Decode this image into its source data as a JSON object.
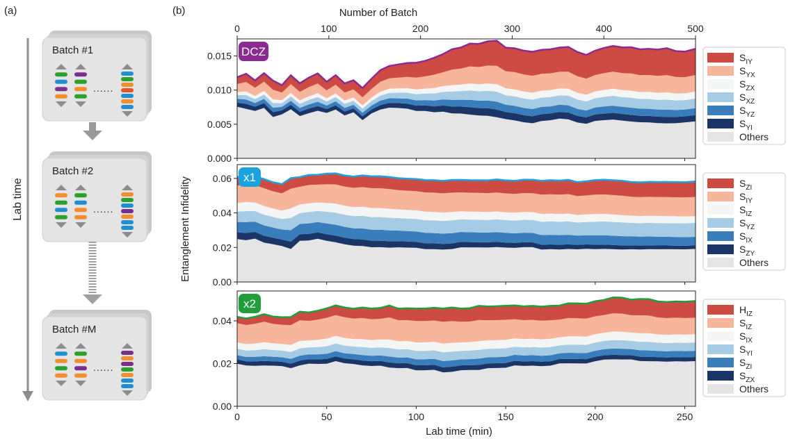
{
  "panel_labels": {
    "a": "(a)",
    "b": "(b)"
  },
  "schematic": {
    "timeline_label": "Lab time",
    "batches": [
      {
        "label": "Batch #1",
        "pulses": [
          [
            "#2ca02c",
            "#1f8fd4",
            "#7b2d8e",
            "#f28e2b"
          ],
          [
            "#7b2d8e",
            "#2ca02c",
            "#f28e2b",
            "#2ca02c"
          ],
          [
            "#1f8fd4",
            "#2ca02c",
            "#f28e2b",
            "#e8542a",
            "#1f8fd4",
            "#f28e2b",
            "#1f8fd4"
          ]
        ]
      },
      {
        "label": "Batch #2",
        "pulses": [
          [
            "#f28e2b",
            "#2ca02c",
            "#1f8fd4",
            "#2ca02c"
          ],
          [
            "#2ca02c",
            "#1f8fd4",
            "#f28e2b",
            "#f28e2b"
          ],
          [
            "#f28e2b",
            "#2ca02c",
            "#1f8fd4",
            "#7b2d8e",
            "#f28e2b",
            "#1f8fd4",
            "#1f8fd4"
          ]
        ]
      },
      {
        "label": "Batch #M",
        "pulses": [
          [
            "#1f8fd4",
            "#f28e2b",
            "#2ca02c",
            "#f28e2b"
          ],
          [
            "#2ca02c",
            "#f28e2b",
            "#7b2d8e",
            "#f28e2b"
          ],
          [
            "#7b2d8e",
            "#f28e2b",
            "#7b2d8e",
            "#2ca02c",
            "#f28e2b",
            "#1f8fd4",
            "#1f8fd4"
          ]
        ]
      }
    ],
    "dots_glyph": "......"
  },
  "chart_data": {
    "type": "area",
    "top_axis": {
      "label": "Number of Batch",
      "ticks": [
        0,
        100,
        200,
        300,
        400,
        500
      ],
      "range": [
        0,
        500
      ]
    },
    "xlabel": "Lab time (min)",
    "ylabel": "Entanglement Infidelity",
    "xlim": [
      0,
      256
    ],
    "x_ticks": [
      0,
      50,
      100,
      150,
      200,
      250
    ],
    "stack_colors": [
      "#e5e5e5",
      "#1a3566",
      "#3a7dbd",
      "#a5cce4",
      "#f4f6f6",
      "#f7b69b",
      "#cd4b42"
    ],
    "panels": [
      {
        "tag": "DCZ",
        "tag_color": "#8b2a91",
        "line_color": "#8b2a91",
        "ylim": [
          0,
          0.0175
        ],
        "y_ticks": [
          "0.000",
          "0.005",
          "0.010",
          "0.015"
        ],
        "x": [
          0,
          5,
          10,
          15,
          20,
          25,
          30,
          35,
          40,
          45,
          50,
          55,
          60,
          65,
          70,
          75,
          80,
          85,
          90,
          95,
          100,
          105,
          110,
          115,
          120,
          125,
          130,
          135,
          140,
          145,
          150,
          155,
          160,
          165,
          170,
          175,
          180,
          185,
          190,
          195,
          200,
          205,
          210,
          215,
          220,
          225,
          230,
          235,
          240,
          245,
          250,
          256
        ],
        "total": [
          0.0118,
          0.0123,
          0.0115,
          0.0125,
          0.0113,
          0.0108,
          0.0122,
          0.011,
          0.0118,
          0.0125,
          0.0113,
          0.0121,
          0.011,
          0.0115,
          0.0103,
          0.0117,
          0.013,
          0.0135,
          0.0138,
          0.014,
          0.0141,
          0.0142,
          0.0148,
          0.0152,
          0.016,
          0.0163,
          0.0168,
          0.0168,
          0.0171,
          0.0172,
          0.0163,
          0.0162,
          0.0158,
          0.0157,
          0.0158,
          0.016,
          0.0162,
          0.0163,
          0.0155,
          0.0152,
          0.0158,
          0.0162,
          0.0165,
          0.0162,
          0.0163,
          0.016,
          0.0161,
          0.016,
          0.0161,
          0.0158,
          0.0157,
          0.016
        ],
        "baseline": [
          0.0075,
          0.0072,
          0.007,
          0.0074,
          0.006,
          0.0065,
          0.0072,
          0.0062,
          0.0066,
          0.007,
          0.0067,
          0.0071,
          0.0063,
          0.0068,
          0.0056,
          0.0066,
          0.0072,
          0.0074,
          0.0074,
          0.0073,
          0.007,
          0.0069,
          0.0068,
          0.0068,
          0.0066,
          0.0066,
          0.0064,
          0.0063,
          0.0062,
          0.006,
          0.0058,
          0.0056,
          0.0053,
          0.0052,
          0.0054,
          0.0056,
          0.0058,
          0.0057,
          0.0052,
          0.0051,
          0.0055,
          0.0056,
          0.0057,
          0.0055,
          0.0054,
          0.0053,
          0.0053,
          0.0052,
          0.0051,
          0.0052,
          0.0053,
          0.0054
        ],
        "series": [
          {
            "name": "S",
            "sub": "IY",
            "color": "#cd4b42",
            "start": 0.0011,
            "end": 0.0038
          },
          {
            "name": "S",
            "sub": "YX",
            "color": "#f7b69b",
            "start": 0.0013,
            "end": 0.0024
          },
          {
            "name": "S",
            "sub": "ZX",
            "color": "#f4f6f6",
            "start": 0.0005,
            "end": 0.001
          },
          {
            "name": "S",
            "sub": "XZ",
            "color": "#a5cce4",
            "start": 0.0006,
            "end": 0.0014
          },
          {
            "name": "S",
            "sub": "YZ",
            "color": "#3a7dbd",
            "start": 0.0006,
            "end": 0.001
          },
          {
            "name": "S",
            "sub": "YI",
            "color": "#1a3566",
            "start": 0.0007,
            "end": 0.0009
          },
          {
            "name": "Others",
            "sub": "",
            "color": "#e5e5e5"
          }
        ]
      },
      {
        "tag": "x1",
        "tag_color": "#1ba3e0",
        "line_color": "#1ba3e0",
        "ylim": [
          0,
          0.068
        ],
        "y_ticks": [
          "0.00",
          "0.02",
          "0.04",
          "0.06"
        ],
        "x": [
          0,
          5,
          10,
          15,
          20,
          25,
          30,
          35,
          40,
          45,
          50,
          55,
          60,
          65,
          70,
          75,
          80,
          85,
          90,
          95,
          100,
          105,
          110,
          115,
          120,
          125,
          130,
          135,
          140,
          145,
          150,
          155,
          160,
          165,
          170,
          175,
          180,
          185,
          190,
          195,
          200,
          205,
          210,
          215,
          220,
          225,
          230,
          235,
          240,
          245,
          250,
          256
        ],
        "total": [
          0.061,
          0.062,
          0.061,
          0.06,
          0.058,
          0.057,
          0.06,
          0.061,
          0.062,
          0.062,
          0.063,
          0.063,
          0.062,
          0.061,
          0.062,
          0.061,
          0.061,
          0.061,
          0.06,
          0.06,
          0.06,
          0.059,
          0.059,
          0.059,
          0.059,
          0.059,
          0.059,
          0.059,
          0.059,
          0.059,
          0.059,
          0.059,
          0.059,
          0.059,
          0.059,
          0.059,
          0.059,
          0.059,
          0.058,
          0.058,
          0.059,
          0.059,
          0.059,
          0.059,
          0.058,
          0.058,
          0.058,
          0.058,
          0.058,
          0.058,
          0.058,
          0.058
        ],
        "baseline": [
          0.025,
          0.024,
          0.025,
          0.023,
          0.022,
          0.021,
          0.019,
          0.024,
          0.024,
          0.025,
          0.024,
          0.023,
          0.022,
          0.021,
          0.021,
          0.02,
          0.02,
          0.02,
          0.02,
          0.02,
          0.02,
          0.019,
          0.019,
          0.019,
          0.019,
          0.02,
          0.02,
          0.02,
          0.02,
          0.02,
          0.02,
          0.02,
          0.02,
          0.02,
          0.019,
          0.019,
          0.019,
          0.019,
          0.019,
          0.019,
          0.019,
          0.019,
          0.019,
          0.019,
          0.019,
          0.019,
          0.019,
          0.019,
          0.019,
          0.019,
          0.019,
          0.019
        ],
        "series": [
          {
            "name": "S",
            "sub": "ZI",
            "color": "#cd4b42",
            "start": 0.005,
            "end": 0.009
          },
          {
            "name": "S",
            "sub": "IY",
            "color": "#f7b69b",
            "start": 0.01,
            "end": 0.011
          },
          {
            "name": "S",
            "sub": "IZ",
            "color": "#f4f6f6",
            "start": 0.005,
            "end": 0.004
          },
          {
            "name": "S",
            "sub": "YZ",
            "color": "#a5cce4",
            "start": 0.006,
            "end": 0.008
          },
          {
            "name": "S",
            "sub": "IX",
            "color": "#3a7dbd",
            "start": 0.006,
            "end": 0.005
          },
          {
            "name": "S",
            "sub": "ZY",
            "color": "#1a3566",
            "start": 0.004,
            "end": 0.002
          },
          {
            "name": "Others",
            "sub": "",
            "color": "#e5e5e5"
          }
        ]
      },
      {
        "tag": "x2",
        "tag_color": "#1f9e3a",
        "line_color": "#1f9e3a",
        "ylim": [
          0,
          0.054
        ],
        "y_ticks": [
          "0.00",
          "0.02",
          "0.04"
        ],
        "x": [
          0,
          5,
          10,
          15,
          20,
          25,
          30,
          35,
          40,
          45,
          50,
          55,
          60,
          65,
          70,
          75,
          80,
          85,
          90,
          95,
          100,
          105,
          110,
          115,
          120,
          125,
          130,
          135,
          140,
          145,
          150,
          155,
          160,
          165,
          170,
          175,
          180,
          185,
          190,
          195,
          200,
          205,
          210,
          215,
          220,
          225,
          230,
          235,
          240,
          245,
          250,
          256
        ],
        "total": [
          0.042,
          0.041,
          0.042,
          0.043,
          0.042,
          0.042,
          0.042,
          0.044,
          0.044,
          0.045,
          0.046,
          0.047,
          0.046,
          0.046,
          0.046,
          0.046,
          0.046,
          0.047,
          0.046,
          0.046,
          0.046,
          0.046,
          0.046,
          0.046,
          0.046,
          0.046,
          0.046,
          0.047,
          0.047,
          0.047,
          0.047,
          0.047,
          0.047,
          0.047,
          0.047,
          0.047,
          0.047,
          0.048,
          0.048,
          0.048,
          0.049,
          0.05,
          0.051,
          0.051,
          0.05,
          0.05,
          0.05,
          0.049,
          0.049,
          0.049,
          0.049,
          0.049
        ],
        "baseline": [
          0.02,
          0.019,
          0.019,
          0.019,
          0.019,
          0.019,
          0.018,
          0.019,
          0.02,
          0.02,
          0.02,
          0.021,
          0.02,
          0.02,
          0.019,
          0.019,
          0.019,
          0.018,
          0.018,
          0.018,
          0.017,
          0.017,
          0.017,
          0.016,
          0.016,
          0.017,
          0.017,
          0.017,
          0.018,
          0.018,
          0.018,
          0.019,
          0.019,
          0.019,
          0.019,
          0.019,
          0.02,
          0.02,
          0.02,
          0.02,
          0.021,
          0.022,
          0.022,
          0.022,
          0.022,
          0.021,
          0.021,
          0.021,
          0.021,
          0.021,
          0.021,
          0.021
        ],
        "series": [
          {
            "name": "H",
            "sub": "IZ",
            "color": "#cd4b42",
            "start": 0.003,
            "end": 0.008
          },
          {
            "name": "S",
            "sub": "IZ",
            "color": "#f7b69b",
            "start": 0.009,
            "end": 0.008
          },
          {
            "name": "S",
            "sub": "IX",
            "color": "#f4f6f6",
            "start": 0.003,
            "end": 0.004
          },
          {
            "name": "S",
            "sub": "YI",
            "color": "#a5cce4",
            "start": 0.003,
            "end": 0.004
          },
          {
            "name": "S",
            "sub": "ZI",
            "color": "#3a7dbd",
            "start": 0.002,
            "end": 0.003
          },
          {
            "name": "S",
            "sub": "ZX",
            "color": "#1a3566",
            "start": 0.002,
            "end": 0.002
          },
          {
            "name": "Others",
            "sub": "",
            "color": "#e5e5e5"
          }
        ]
      }
    ]
  }
}
